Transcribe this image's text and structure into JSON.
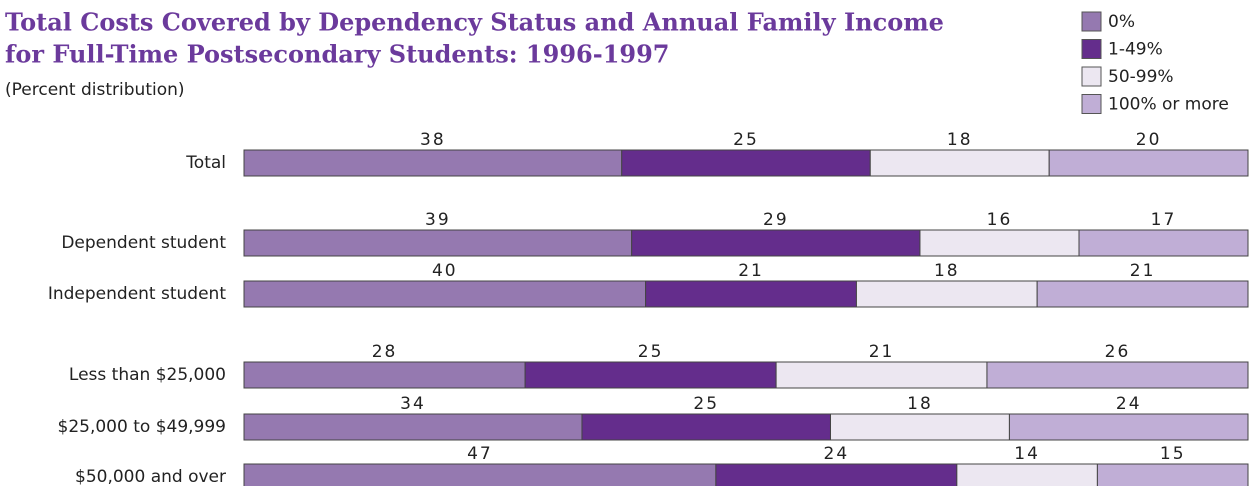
{
  "chart_data": {
    "type": "stacked-barh",
    "title": "Total Costs Covered by Dependency Status and Annual Family Income",
    "title_line2": "for Full-Time Postsecondary Students: 1996-1997",
    "subtitle": "(Percent distribution)",
    "categories": [
      "Total",
      "Dependent student",
      "Independent student",
      "Less than $25,000",
      "$25,000 to $49,999",
      "$50,000 and over"
    ],
    "series": [
      {
        "name": "0%",
        "color": "#9579b0",
        "values": [
          38,
          39,
          40,
          28,
          34,
          47
        ]
      },
      {
        "name": "1-49%",
        "color": "#642d8c",
        "values": [
          25,
          29,
          21,
          25,
          25,
          24
        ]
      },
      {
        "name": "50-99%",
        "color": "#ece7f1",
        "values": [
          18,
          16,
          18,
          21,
          18,
          14
        ]
      },
      {
        "name": "100% or more",
        "color": "#c0aed6",
        "values": [
          20,
          17,
          21,
          26,
          24,
          15
        ]
      }
    ],
    "legend": "top-right"
  }
}
